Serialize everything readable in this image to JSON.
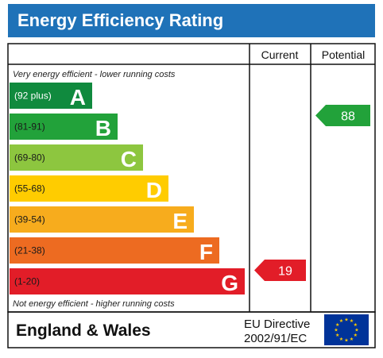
{
  "title": "Energy Efficiency Rating",
  "columns": {
    "current": "Current",
    "potential": "Potential"
  },
  "notes": {
    "top": "Very energy efficient - lower running costs",
    "bottom": "Not energy efficient - higher running costs"
  },
  "chart_data": {
    "type": "bar",
    "categories": [
      "A",
      "B",
      "C",
      "D",
      "E",
      "F",
      "G"
    ],
    "ranges": [
      "(92 plus)",
      "(81-91)",
      "(69-80)",
      "(55-68)",
      "(39-54)",
      "(21-38)",
      "(1-20)"
    ],
    "colors": [
      "#108a3e",
      "#22a23a",
      "#8dc63f",
      "#ffcc00",
      "#f7ac1d",
      "#ed6b21",
      "#e21d28"
    ],
    "current": {
      "value": 19,
      "band": "G",
      "color": "#e21d28"
    },
    "potential": {
      "value": 88,
      "band": "B",
      "color": "#22a23a"
    }
  },
  "footer": {
    "region": "England & Wales",
    "directive_line1": "EU Directive",
    "directive_line2": "2002/91/EC",
    "flag": "eu-flag-icon"
  }
}
